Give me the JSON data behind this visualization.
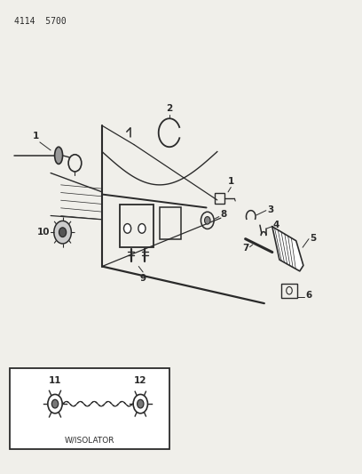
{
  "bg_color": "#f0efea",
  "line_color": "#2a2a2a",
  "title_text": "4114  5700",
  "title_fontsize": 7,
  "label_fontsize": 7.5,
  "inset_label": "W/ISOLATOR"
}
